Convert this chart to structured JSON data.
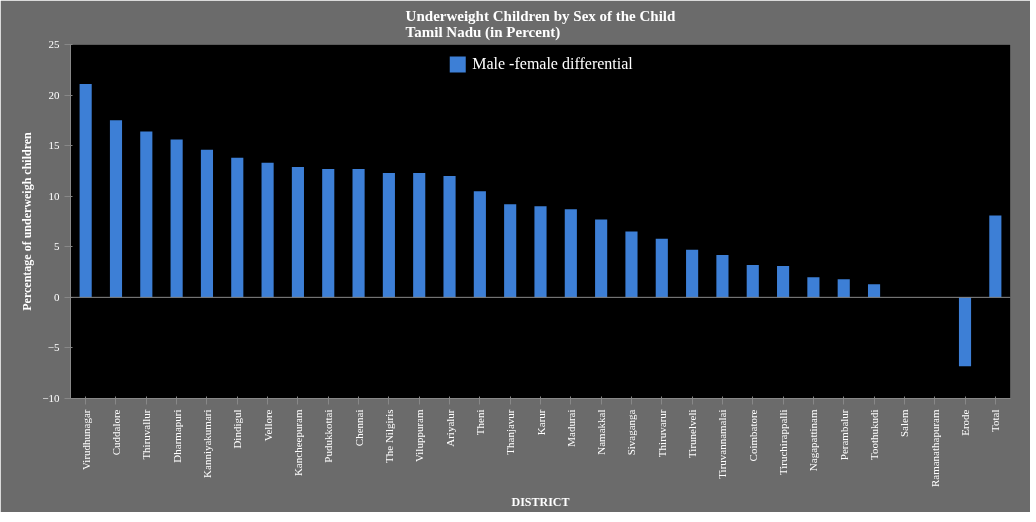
{
  "chart_data": {
    "type": "bar",
    "title": "Underweight Children by Sex of the Child\nTamil Nadu    (in Percent)",
    "xlabel": "DISTRICT",
    "ylabel": "Percentage of underweigh children",
    "categories": [
      "Virudhunagar",
      "Cuddalore",
      "Thiruvallur",
      "Dharmapuri",
      "Kanniyakumari",
      "Dindigul",
      "Vellore",
      "Kancheepuram",
      "Pudukkottai",
      "Chennai",
      "The Nilgiris",
      "Viluppuram",
      "Ariyalur",
      "Theni",
      "Thanjavur",
      "Karur",
      "Madurai",
      "Namakkal",
      "Sivaganga",
      "Thiruvarur",
      "Tirunelveli",
      "Tiruvannamalai",
      "Coimbatore",
      "Tiruchirappalli",
      "Nagapattinam",
      "Perambalur",
      "Toothukudi",
      "Salem",
      "Ramanathapuram",
      "Erode",
      "Total"
    ],
    "series": [
      {
        "name": "Male -female differential",
        "color": "#3d7fd6",
        "values": [
          21.1,
          17.5,
          16.4,
          15.6,
          14.6,
          13.8,
          13.3,
          12.9,
          12.7,
          12.7,
          12.3,
          12.3,
          12.0,
          10.5,
          9.2,
          9.0,
          8.7,
          7.7,
          6.5,
          5.8,
          4.7,
          4.2,
          3.2,
          3.1,
          2.0,
          1.8,
          1.3,
          0,
          0,
          -6.8,
          8.1
        ]
      }
    ],
    "ylim": [
      -10,
      25
    ],
    "yticks": [
      -10,
      -5,
      0,
      5,
      10,
      15,
      20,
      25
    ],
    "grid": false,
    "ref_lines": [
      {
        "axis": "y",
        "value": 0,
        "color": "#888888"
      }
    ],
    "legend": "top"
  }
}
